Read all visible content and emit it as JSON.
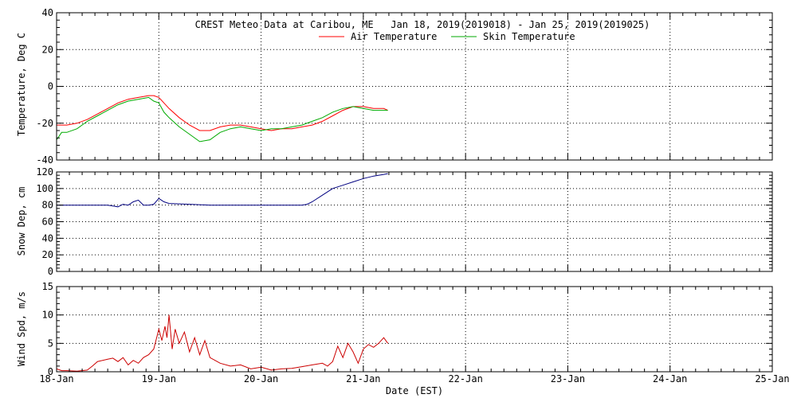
{
  "chart_data": [
    {
      "type": "line",
      "title": "CREST Meteo Data at Caribou, ME   Jan 18, 2019(2019018) - Jan 25, 2019(2019025)",
      "ylabel": "Temperature, Deg C",
      "ylim": [
        -40,
        40
      ],
      "yticks": [
        "40",
        "20",
        "0",
        "-20",
        "-40"
      ],
      "xlim": [
        0,
        7
      ],
      "legend": "top-center",
      "grid": true,
      "series": [
        {
          "name": "Air Temperature",
          "color": "#ff0000",
          "x": [
            0,
            0.1,
            0.2,
            0.3,
            0.4,
            0.5,
            0.6,
            0.7,
            0.8,
            0.9,
            0.95,
            1.0,
            1.05,
            1.1,
            1.2,
            1.3,
            1.4,
            1.5,
            1.6,
            1.7,
            1.8,
            1.9,
            2.0,
            2.1,
            2.2,
            2.3,
            2.4,
            2.5,
            2.6,
            2.7,
            2.8,
            2.9,
            3.0,
            3.1,
            3.2,
            3.24
          ],
          "y": [
            -21,
            -21,
            -20,
            -18,
            -15,
            -12,
            -9,
            -7,
            -6,
            -5,
            -5,
            -6,
            -9,
            -12,
            -17,
            -21,
            -24,
            -24,
            -22,
            -21,
            -21,
            -22,
            -23,
            -24,
            -23,
            -23,
            -22,
            -21,
            -19,
            -16,
            -13,
            -11,
            -11,
            -12,
            -12,
            -13
          ]
        },
        {
          "name": "Skin Temperature",
          "color": "#00aa00",
          "x": [
            0,
            0.05,
            0.1,
            0.2,
            0.3,
            0.4,
            0.5,
            0.6,
            0.7,
            0.8,
            0.9,
            0.95,
            1.0,
            1.05,
            1.1,
            1.2,
            1.3,
            1.4,
            1.5,
            1.6,
            1.7,
            1.8,
            1.9,
            2.0,
            2.1,
            2.2,
            2.3,
            2.4,
            2.5,
            2.6,
            2.7,
            2.8,
            2.9,
            3.0,
            3.1,
            3.2,
            3.24
          ],
          "y": [
            -29,
            -25,
            -25,
            -23,
            -19,
            -16,
            -13,
            -10,
            -8,
            -7,
            -6,
            -8,
            -9,
            -14,
            -17,
            -22,
            -26,
            -30,
            -29,
            -25,
            -23,
            -22,
            -23,
            -24,
            -23,
            -23,
            -22,
            -21,
            -19,
            -17,
            -14,
            -12,
            -11,
            -12,
            -13,
            -13,
            -13
          ]
        }
      ]
    },
    {
      "type": "line",
      "ylabel": "Snow Dep, cm",
      "ylim": [
        0,
        120
      ],
      "yticks": [
        "120",
        "100",
        "80",
        "60",
        "40",
        "20",
        "0"
      ],
      "xlim": [
        0,
        7
      ],
      "grid": true,
      "series": [
        {
          "name": "",
          "color": "#000080",
          "x": [
            0,
            0.2,
            0.4,
            0.5,
            0.55,
            0.6,
            0.65,
            0.7,
            0.75,
            0.8,
            0.85,
            0.9,
            0.95,
            1.0,
            1.05,
            1.1,
            1.3,
            1.5,
            1.8,
            2.0,
            2.2,
            2.3,
            2.4,
            2.45,
            2.5,
            2.6,
            2.7,
            2.8,
            2.9,
            3.0,
            3.1,
            3.2,
            3.24
          ],
          "y": [
            80,
            80,
            80,
            80,
            79,
            78,
            81,
            80,
            84,
            86,
            80,
            80,
            81,
            88,
            84,
            82,
            81,
            80,
            80,
            80,
            80,
            80,
            80,
            81,
            84,
            92,
            100,
            104,
            108,
            112,
            115,
            117,
            118
          ]
        }
      ]
    },
    {
      "type": "line",
      "ylabel": "Wind Spd, m/s",
      "ylim": [
        0,
        15
      ],
      "yticks": [
        "15",
        "10",
        "5",
        "0"
      ],
      "xlim": [
        0,
        7
      ],
      "xlabel": "Date (EST)",
      "xticks": [
        "18-Jan",
        "19-Jan",
        "20-Jan",
        "21-Jan",
        "22-Jan",
        "23-Jan",
        "24-Jan",
        "25-Jan"
      ],
      "grid": true,
      "series": [
        {
          "name": "",
          "color": "#cc0000",
          "x": [
            0,
            0.05,
            0.1,
            0.2,
            0.3,
            0.35,
            0.4,
            0.5,
            0.55,
            0.6,
            0.65,
            0.7,
            0.75,
            0.8,
            0.85,
            0.9,
            0.95,
            1.0,
            1.03,
            1.06,
            1.08,
            1.1,
            1.13,
            1.16,
            1.2,
            1.25,
            1.3,
            1.35,
            1.4,
            1.45,
            1.5,
            1.55,
            1.6,
            1.7,
            1.8,
            1.9,
            2.0,
            2.1,
            2.2,
            2.3,
            2.4,
            2.5,
            2.6,
            2.65,
            2.7,
            2.75,
            2.8,
            2.85,
            2.9,
            2.95,
            3.0,
            3.05,
            3.1,
            3.15,
            3.2,
            3.24
          ],
          "y": [
            0.5,
            0.2,
            0.2,
            0.1,
            0.3,
            1.0,
            1.8,
            2.2,
            2.4,
            1.8,
            2.5,
            1.2,
            2.0,
            1.5,
            2.5,
            3.0,
            4.0,
            7.5,
            5.5,
            8.0,
            6.0,
            10.0,
            4.0,
            7.5,
            5.0,
            7.0,
            3.5,
            6.0,
            3.0,
            5.5,
            2.5,
            2.0,
            1.5,
            1.0,
            1.2,
            0.5,
            0.8,
            0.3,
            0.5,
            0.6,
            0.9,
            1.2,
            1.5,
            1.0,
            1.8,
            4.5,
            2.5,
            5.0,
            3.5,
            1.5,
            4.0,
            4.8,
            4.3,
            5.0,
            6.0,
            5.0
          ]
        }
      ]
    }
  ]
}
